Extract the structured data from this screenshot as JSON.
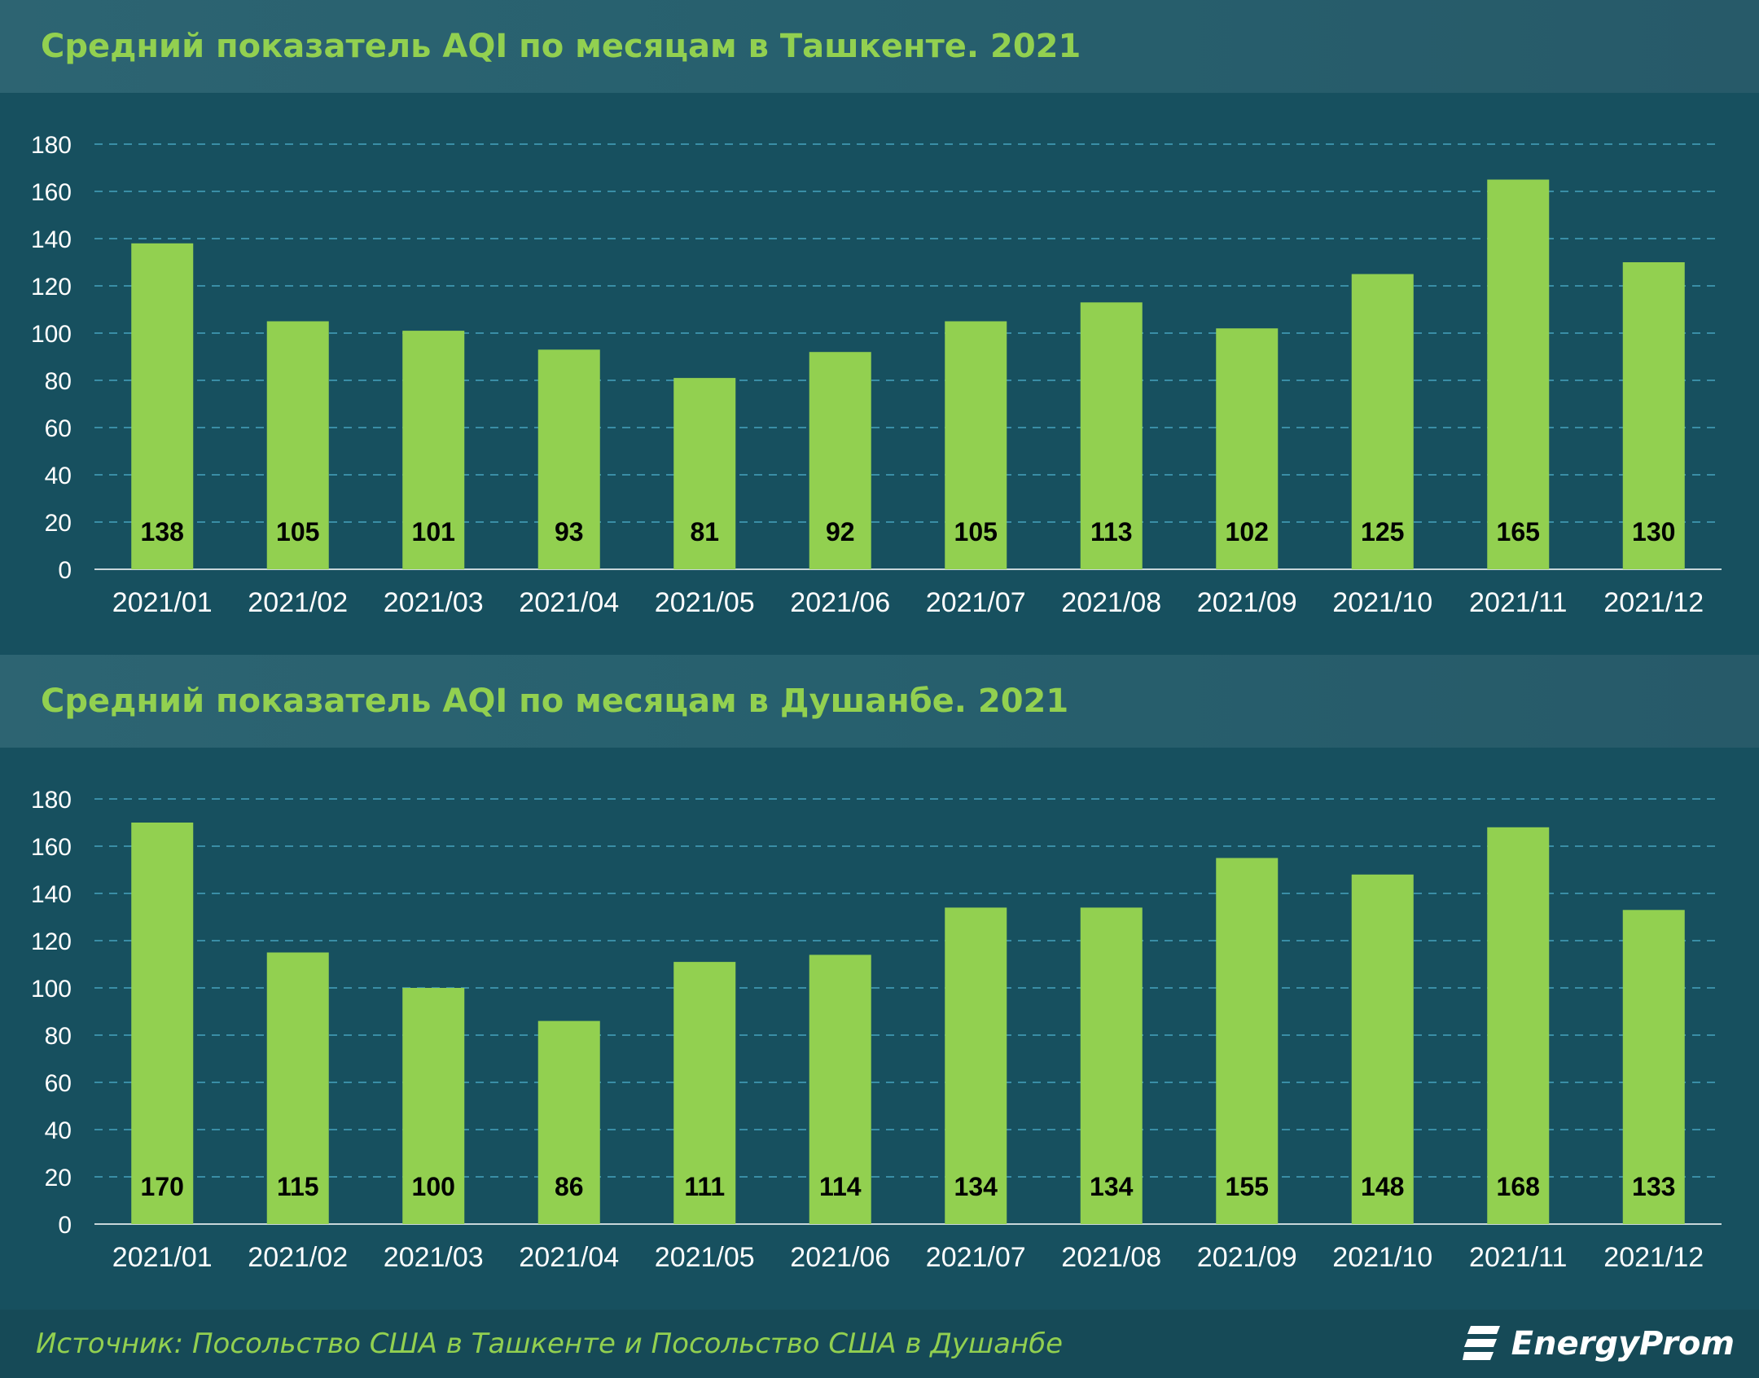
{
  "charts": {
    "tashkent": {
      "title": "Средний показатель AQI по месяцам в Ташкенте. 2021"
    },
    "dushanbe": {
      "title": "Средний показатель AQI по месяцам в Душанбе. 2021"
    }
  },
  "footer": {
    "source": "Источник: Посольство США в Ташкенте и Посольство США в Душанбе",
    "logo": "EnergyProm"
  },
  "colors": {
    "bar": "#92d050",
    "title": "#92d050",
    "background": "#17505f",
    "gridline": "#3a8ea6",
    "axis_text": "#ffffff",
    "label_text": "#000000"
  },
  "chart_data": [
    {
      "type": "bar",
      "title": "Средний показатель AQI по месяцам в Ташкенте. 2021",
      "categories": [
        "2021/01",
        "2021/02",
        "2021/03",
        "2021/04",
        "2021/05",
        "2021/06",
        "2021/07",
        "2021/08",
        "2021/09",
        "2021/10",
        "2021/11",
        "2021/12"
      ],
      "values": [
        138,
        105,
        101,
        93,
        81,
        92,
        105,
        113,
        102,
        125,
        165,
        130
      ],
      "ylim": [
        0,
        180
      ],
      "yticks": [
        0,
        20,
        40,
        60,
        80,
        100,
        120,
        140,
        160,
        180
      ],
      "grid": true,
      "data_labels": "inside-bottom"
    },
    {
      "type": "bar",
      "title": "Средний показатель AQI по месяцам в Душанбе. 2021",
      "categories": [
        "2021/01",
        "2021/02",
        "2021/03",
        "2021/04",
        "2021/05",
        "2021/06",
        "2021/07",
        "2021/08",
        "2021/09",
        "2021/10",
        "2021/11",
        "2021/12"
      ],
      "values": [
        170,
        115,
        100,
        86,
        111,
        114,
        134,
        134,
        155,
        148,
        168,
        133
      ],
      "ylim": [
        0,
        180
      ],
      "yticks": [
        0,
        20,
        40,
        60,
        80,
        100,
        120,
        140,
        160,
        180
      ],
      "grid": true,
      "data_labels": "inside-bottom"
    }
  ]
}
